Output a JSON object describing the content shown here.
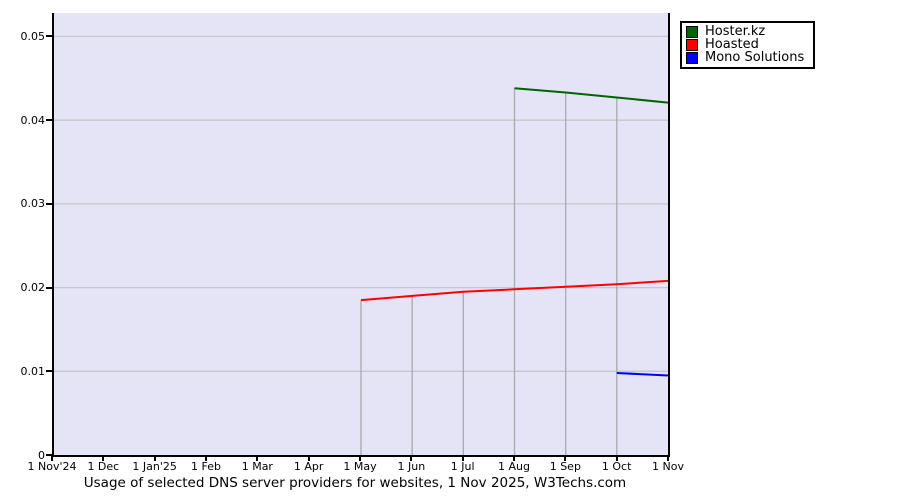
{
  "title": "Usage of selected DNS server providers for websites, 1 Nov 2025, W3Techs.com",
  "legend": {
    "items": [
      {
        "label": "Hoster.kz",
        "color": "#006400"
      },
      {
        "label": "Hoasted",
        "color": "#ff0000"
      },
      {
        "label": "Mono Solutions",
        "color": "#0000ff"
      }
    ]
  },
  "chart_data": {
    "type": "line",
    "title": "Usage of selected DNS server providers for websites, 1 Nov 2025, W3Techs.com",
    "x_tick_labels": [
      "1 Nov'24",
      "1 Dec",
      "1 Jan'25",
      "1 Feb",
      "1 Mar",
      "1 Apr",
      "1 May",
      "1 Jun",
      "1 Jul",
      "1 Aug",
      "1 Sep",
      "1 Oct",
      "1 Nov"
    ],
    "y_ticks": [
      0,
      0.01,
      0.02,
      0.03,
      0.04,
      0.05
    ],
    "y_tick_labels": [
      "0",
      "0.01",
      "0.02",
      "0.03",
      "0.04",
      "0.05"
    ],
    "ylim": [
      0,
      0.0528
    ],
    "grid": true,
    "legend_position": "top-right-outside",
    "plot_background": "#e4e4f6",
    "h_grid_color": "#c6c6ce",
    "v_grid_color": "#a9a9b2",
    "series": [
      {
        "name": "Hoster.kz",
        "color": "#006400",
        "start_index": 9,
        "x": [
          "1 Aug",
          "1 Sep",
          "1 Oct",
          "1 Nov"
        ],
        "values": [
          0.0438,
          0.0433,
          0.0427,
          0.0421
        ]
      },
      {
        "name": "Hoasted",
        "color": "#ff0000",
        "start_index": 6,
        "x": [
          "1 May",
          "1 Jun",
          "1 Jul",
          "1 Aug",
          "1 Sep",
          "1 Oct",
          "1 Nov"
        ],
        "values": [
          0.0185,
          0.019,
          0.0195,
          0.0198,
          0.0201,
          0.0204,
          0.0208
        ]
      },
      {
        "name": "Mono Solutions",
        "color": "#0000ff",
        "start_index": 11,
        "x": [
          "1 Oct",
          "1 Nov"
        ],
        "values": [
          0.0098,
          0.0095
        ]
      }
    ]
  }
}
